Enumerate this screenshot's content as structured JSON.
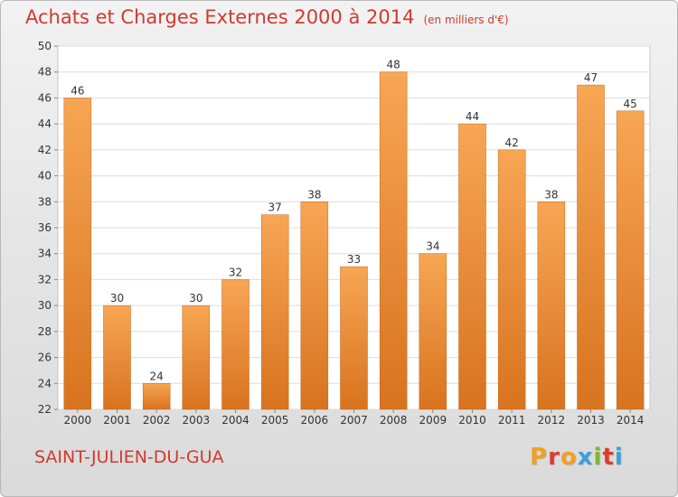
{
  "header": {
    "title": "Achats et Charges Externes 2000 à 2014",
    "unit": "(en milliers d'€)"
  },
  "footer": {
    "commune": "SAINT-JULIEN-DU-GUA",
    "logo_text": "Proxiti"
  },
  "colors": {
    "title": "#d03a2e",
    "bar_top": "#f7a654",
    "bar_bottom": "#d8731f",
    "logo": [
      "#f0a020",
      "#e03a2a",
      "#f0a020",
      "#3aa0d8",
      "#7ab830",
      "#e03a2a",
      "#3aa0d8"
    ]
  },
  "chart_data": {
    "type": "bar",
    "title": "Achats et Charges Externes 2000 à 2014",
    "ylabel": "",
    "xlabel": "",
    "categories": [
      "2000",
      "2001",
      "2002",
      "2003",
      "2004",
      "2005",
      "2006",
      "2007",
      "2008",
      "2009",
      "2010",
      "2011",
      "2012",
      "2013",
      "2014"
    ],
    "values": [
      46,
      30,
      24,
      30,
      32,
      37,
      38,
      33,
      48,
      34,
      44,
      42,
      38,
      47,
      45
    ],
    "ylim": [
      22,
      50
    ],
    "yticks": [
      22,
      24,
      26,
      28,
      30,
      32,
      34,
      36,
      38,
      40,
      42,
      44,
      46,
      48,
      50
    ],
    "grid": true,
    "data_labels": true
  }
}
